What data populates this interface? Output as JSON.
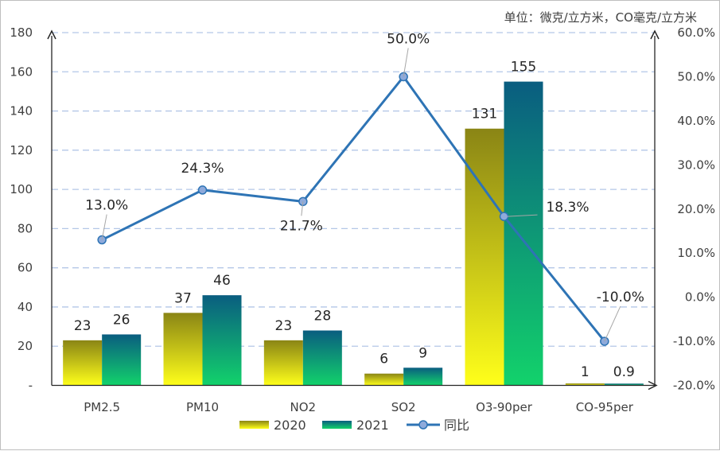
{
  "unit_note": "单位：微克/立方米，CO毫克/立方米",
  "colors": {
    "bar2020_top": "#8a8515",
    "bar2020_bottom": "#ffff1a",
    "bar2021_top": "#0a5d80",
    "bar2021_bottom": "#12d26b",
    "line": "#2e74b5",
    "grid": "#b4c7e7",
    "axis": "#262626"
  },
  "chart_data": {
    "type": "bar",
    "categories": [
      "PM2.5",
      "PM10",
      "NO2",
      "SO2",
      "O3-90per",
      "CO-95per"
    ],
    "series": [
      {
        "name": "2020",
        "values": [
          23,
          37,
          23,
          6,
          131,
          1
        ],
        "labels": [
          "23",
          "37",
          "23",
          "6",
          "131",
          "1"
        ]
      },
      {
        "name": "2021",
        "values": [
          26,
          46,
          28,
          9,
          155,
          0.9
        ],
        "labels": [
          "26",
          "46",
          "28",
          "9",
          "155",
          "0.9"
        ]
      }
    ],
    "line_series": {
      "name": "同比",
      "axis": "right",
      "values": [
        13.0,
        24.3,
        21.7,
        50.0,
        18.3,
        -10.0
      ],
      "labels": [
        "13.0%",
        "24.3%",
        "21.7%",
        "50.0%",
        "18.3%",
        "-10.0%"
      ]
    },
    "y_left": {
      "min": 0,
      "max": 180,
      "step": 20,
      "tick_labels": [
        "-",
        "20",
        "40",
        "60",
        "80",
        "100",
        "120",
        "140",
        "160",
        "180"
      ]
    },
    "y_right": {
      "min": -20,
      "max": 60,
      "step": 10,
      "tick_labels": [
        "-20.0%",
        "-10.0%",
        "0.0%",
        "10.0%",
        "20.0%",
        "30.0%",
        "40.0%",
        "50.0%",
        "60.0%"
      ]
    },
    "grid": true,
    "legend_position": "bottom",
    "legend": [
      "2020",
      "2021",
      "同比"
    ]
  }
}
